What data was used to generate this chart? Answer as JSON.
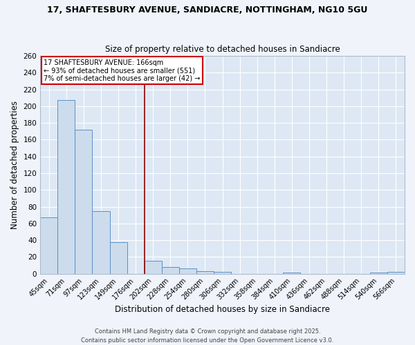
{
  "title_line1": "17, SHAFTESBURY AVENUE, SANDIACRE, NOTTINGHAM, NG10 5GU",
  "title_line2": "Size of property relative to detached houses in Sandiacre",
  "xlabel": "Distribution of detached houses by size in Sandiacre",
  "ylabel": "Number of detached properties",
  "categories": [
    "45sqm",
    "71sqm",
    "97sqm",
    "123sqm",
    "149sqm",
    "176sqm",
    "202sqm",
    "228sqm",
    "254sqm",
    "280sqm",
    "306sqm",
    "332sqm",
    "358sqm",
    "384sqm",
    "410sqm",
    "436sqm",
    "462sqm",
    "488sqm",
    "514sqm",
    "540sqm",
    "566sqm"
  ],
  "values": [
    67,
    207,
    172,
    75,
    38,
    0,
    15,
    8,
    6,
    3,
    2,
    0,
    0,
    0,
    1,
    0,
    0,
    0,
    0,
    1,
    2
  ],
  "bar_color": "#ccdcec",
  "bar_edge_color": "#5b8fc9",
  "vline_x": 5.5,
  "vline_color": "#8b0000",
  "annotation_text": "17 SHAFTESBURY AVENUE: 166sqm\n← 93% of detached houses are smaller (551)\n7% of semi-detached houses are larger (42) →",
  "annotation_box_facecolor": "#ffffff",
  "annotation_box_edgecolor": "#cc0000",
  "ylim": [
    0,
    260
  ],
  "yticks": [
    0,
    20,
    40,
    60,
    80,
    100,
    120,
    140,
    160,
    180,
    200,
    220,
    240,
    260
  ],
  "fig_facecolor": "#f0f4fa",
  "ax_facecolor": "#dde8f4",
  "grid_color": "#ffffff",
  "footer_line1": "Contains HM Land Registry data © Crown copyright and database right 2025.",
  "footer_line2": "Contains public sector information licensed under the Open Government Licence v3.0."
}
